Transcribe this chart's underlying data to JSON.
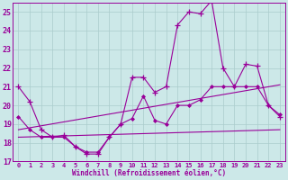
{
  "background_color": "#cce8e8",
  "grid_color": "#aacccc",
  "line_color": "#990099",
  "xlabel": "Windchill (Refroidissement éolien,°C)",
  "xlim": [
    -0.5,
    23.5
  ],
  "ylim": [
    17,
    25.5
  ],
  "yticks": [
    17,
    18,
    19,
    20,
    21,
    22,
    23,
    24,
    25
  ],
  "xticks": [
    0,
    1,
    2,
    3,
    4,
    5,
    6,
    7,
    8,
    9,
    10,
    11,
    12,
    13,
    14,
    15,
    16,
    17,
    18,
    19,
    20,
    21,
    22,
    23
  ],
  "series": [
    {
      "x": [
        0,
        1,
        2,
        3,
        4,
        5,
        6,
        7,
        8,
        9,
        10,
        11,
        12,
        13,
        14,
        15,
        16,
        17,
        18,
        19,
        20,
        21,
        22,
        23
      ],
      "y": [
        21.0,
        20.2,
        18.7,
        18.3,
        18.4,
        17.8,
        17.4,
        17.4,
        18.3,
        19.0,
        21.5,
        21.5,
        20.7,
        21.0,
        24.3,
        25.0,
        24.9,
        25.6,
        22.0,
        21.0,
        22.2,
        22.1,
        20.0,
        19.4
      ],
      "marker": "+"
    },
    {
      "x": [
        0,
        1,
        2,
        3,
        4,
        5,
        6,
        7,
        8,
        9,
        10,
        11,
        12,
        13,
        14,
        15,
        16,
        17,
        18,
        19,
        20,
        21,
        22,
        23
      ],
      "y": [
        19.4,
        18.7,
        18.3,
        18.3,
        18.3,
        17.8,
        17.5,
        17.5,
        18.3,
        19.0,
        19.3,
        20.5,
        19.2,
        19.0,
        20.0,
        20.0,
        20.3,
        21.0,
        21.0,
        21.0,
        21.0,
        21.0,
        20.0,
        19.5
      ],
      "marker": "D"
    },
    {
      "x": [
        0,
        23
      ],
      "y": [
        18.7,
        21.1
      ],
      "marker": null
    },
    {
      "x": [
        0,
        23
      ],
      "y": [
        18.3,
        18.7
      ],
      "marker": null
    }
  ]
}
